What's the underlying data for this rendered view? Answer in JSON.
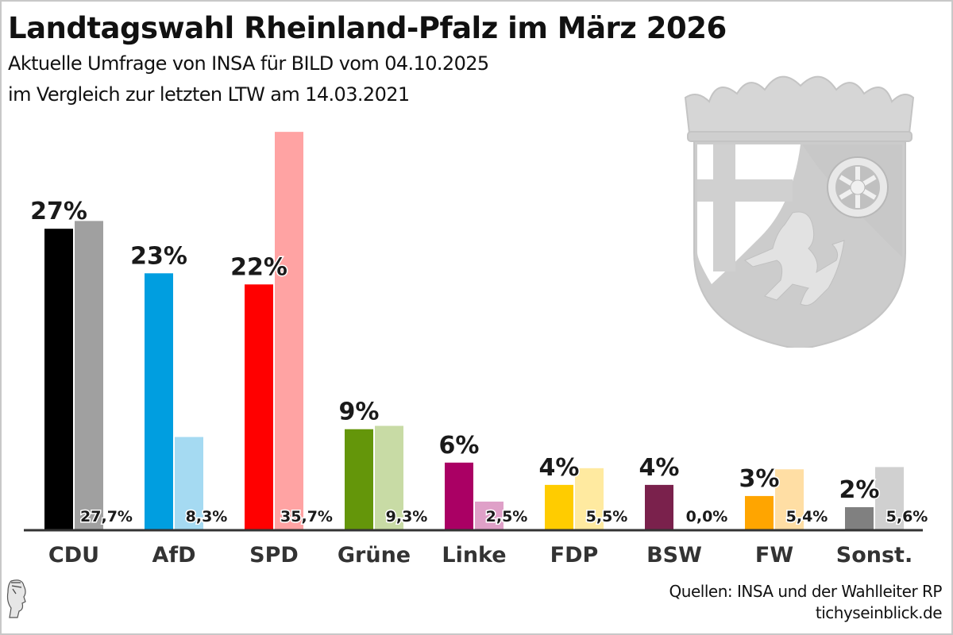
{
  "header": {
    "title": "Landtagswahl Rheinland-Pfalz im März 2026",
    "subtitle_line1": "Aktuelle Umfrage von INSA für BILD vom 04.10.2025",
    "subtitle_line2": "im Vergleich zur letzten LTW am 14.03.2021"
  },
  "footer": {
    "source": "Quellen: INSA und der Wahlleiter RP",
    "site": "tichyseinblick.de"
  },
  "icons": {
    "crest": "rheinland-pfalz-coat-of-arms",
    "logo": "tichys-einblick-head-logo"
  },
  "chart_data": {
    "type": "bar",
    "title": "Landtagswahl Rheinland-Pfalz im März 2026",
    "xlabel": "",
    "ylabel": "",
    "ylim": [
      0,
      36
    ],
    "grid": false,
    "legend": "none",
    "categories": [
      "CDU",
      "AfD",
      "SPD",
      "Grüne",
      "Linke",
      "FDP",
      "BSW",
      "FW",
      "Sonst."
    ],
    "series": [
      {
        "name": "INSA Umfrage 04.10.2025",
        "values": [
          27,
          23,
          22,
          9,
          6,
          4,
          4,
          3,
          2
        ],
        "labels": [
          "27%",
          "23%",
          "22%",
          "9%",
          "6%",
          "4%",
          "4%",
          "3%",
          "2%"
        ],
        "colors": [
          "#000000",
          "#009ee0",
          "#ff0000",
          "#64960a",
          "#aa0064",
          "#ffcc00",
          "#7a214c",
          "#ffa500",
          "#808080"
        ]
      },
      {
        "name": "LTW 14.03.2021",
        "values": [
          27.7,
          8.3,
          35.7,
          9.3,
          2.5,
          5.5,
          0.0,
          5.4,
          5.6
        ],
        "labels": [
          "27,7%",
          "8,3%",
          "35,7%",
          "9,3%",
          "2,5%",
          "5,5%",
          "0,0%",
          "5,4%",
          "5,6%"
        ],
        "colors": [
          "#a0a0a0",
          "#a5daf2",
          "#ffa3a3",
          "#c8dba5",
          "#dfa0c8",
          "#ffeaa0",
          "#c8a0b4",
          "#ffdea4",
          "#d0d0d0"
        ]
      }
    ]
  }
}
